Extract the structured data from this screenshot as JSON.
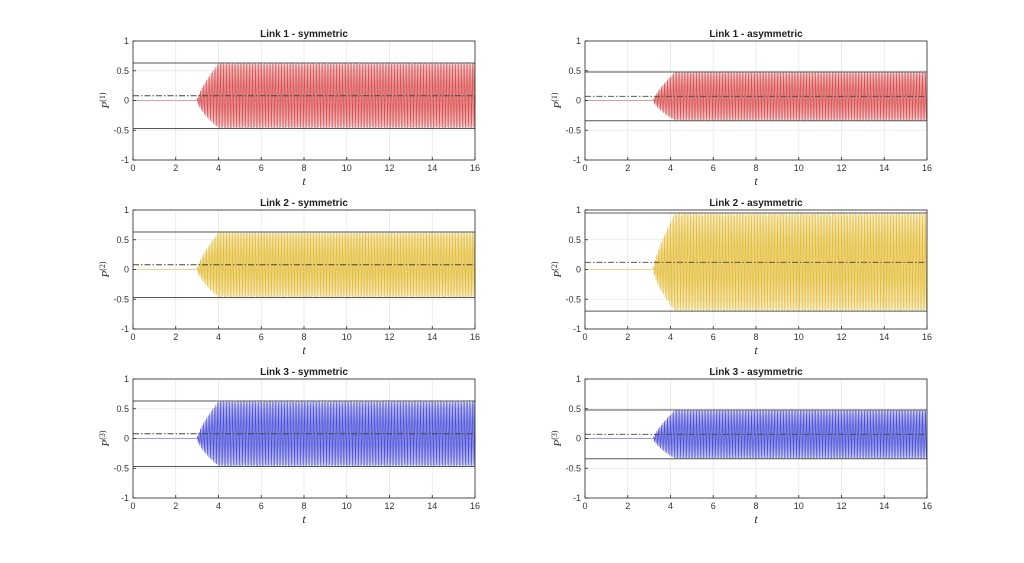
{
  "chart_data": [
    {
      "type": "line",
      "title": "Link 1 - symmetric",
      "xlabel": "t",
      "ylabel_base": "P",
      "ylabel_sup": "(1)",
      "xlim": [
        0,
        16
      ],
      "ylim": [
        -1,
        1
      ],
      "xticks": [
        "0",
        "2",
        "4",
        "6",
        "8",
        "10",
        "12",
        "14",
        "16"
      ],
      "yticks": [
        "-1",
        "-0.5",
        "0",
        "0.5",
        "1"
      ],
      "grid": true,
      "series_color": "#d94f4f",
      "envelope_max": 0.63,
      "envelope_min": -0.47,
      "mean": 0.08,
      "onset_t": 3.0,
      "full_amplitude_t": 4.0,
      "cycles_per_unit": 14
    },
    {
      "type": "line",
      "title": "Link 1 - asymmetric",
      "xlabel": "t",
      "ylabel_base": "P",
      "ylabel_sup": "(1)",
      "xlim": [
        0,
        16
      ],
      "ylim": [
        -1,
        1
      ],
      "xticks": [
        "0",
        "2",
        "4",
        "6",
        "8",
        "10",
        "12",
        "14",
        "16"
      ],
      "yticks": [
        "-1",
        "-0.5",
        "0",
        "0.5",
        "1"
      ],
      "grid": true,
      "series_color": "#d94f4f",
      "envelope_max": 0.48,
      "envelope_min": -0.34,
      "mean": 0.07,
      "onset_t": 3.2,
      "full_amplitude_t": 4.2,
      "cycles_per_unit": 14
    },
    {
      "type": "line",
      "title": "Link 2 - symmetric",
      "xlabel": "t",
      "ylabel_base": "P",
      "ylabel_sup": "(2)",
      "xlim": [
        0,
        16
      ],
      "ylim": [
        -1,
        1
      ],
      "xticks": [
        "0",
        "2",
        "4",
        "6",
        "8",
        "10",
        "12",
        "14",
        "16"
      ],
      "yticks": [
        "-1",
        "-0.5",
        "0",
        "0.5",
        "1"
      ],
      "grid": true,
      "series_color": "#e4bd38",
      "envelope_max": 0.63,
      "envelope_min": -0.47,
      "mean": 0.08,
      "onset_t": 3.0,
      "full_amplitude_t": 4.0,
      "cycles_per_unit": 14
    },
    {
      "type": "line",
      "title": "Link 2 - asymmetric",
      "xlabel": "t",
      "ylabel_base": "P",
      "ylabel_sup": "(2)",
      "xlim": [
        0,
        16
      ],
      "ylim": [
        -1,
        1
      ],
      "xticks": [
        "0",
        "2",
        "4",
        "6",
        "8",
        "10",
        "12",
        "14",
        "16"
      ],
      "yticks": [
        "-1",
        "-0.5",
        "0",
        "0.5",
        "1"
      ],
      "grid": true,
      "series_color": "#e4bd38",
      "envelope_max": 0.95,
      "envelope_min": -0.7,
      "mean": 0.12,
      "onset_t": 3.2,
      "full_amplitude_t": 4.2,
      "cycles_per_unit": 14
    },
    {
      "type": "line",
      "title": "Link 3 - symmetric",
      "xlabel": "t",
      "ylabel_base": "P",
      "ylabel_sup": "(3)",
      "xlim": [
        0,
        16
      ],
      "ylim": [
        -1,
        1
      ],
      "xticks": [
        "0",
        "2",
        "4",
        "6",
        "8",
        "10",
        "12",
        "14",
        "16"
      ],
      "yticks": [
        "-1",
        "-0.5",
        "0",
        "0.5",
        "1"
      ],
      "grid": true,
      "series_color": "#4a4fd8",
      "envelope_max": 0.63,
      "envelope_min": -0.47,
      "mean": 0.08,
      "onset_t": 3.0,
      "full_amplitude_t": 4.0,
      "cycles_per_unit": 14
    },
    {
      "type": "line",
      "title": "Link 3 - asymmetric",
      "xlabel": "t",
      "ylabel_base": "P",
      "ylabel_sup": "(3)",
      "xlim": [
        0,
        16
      ],
      "ylim": [
        -1,
        1
      ],
      "xticks": [
        "0",
        "2",
        "4",
        "6",
        "8",
        "10",
        "12",
        "14",
        "16"
      ],
      "yticks": [
        "-1",
        "-0.5",
        "0",
        "0.5",
        "1"
      ],
      "grid": true,
      "series_color": "#4a4fd8",
      "envelope_max": 0.48,
      "envelope_min": -0.34,
      "mean": 0.07,
      "onset_t": 3.2,
      "full_amplitude_t": 4.2,
      "cycles_per_unit": 14
    }
  ]
}
